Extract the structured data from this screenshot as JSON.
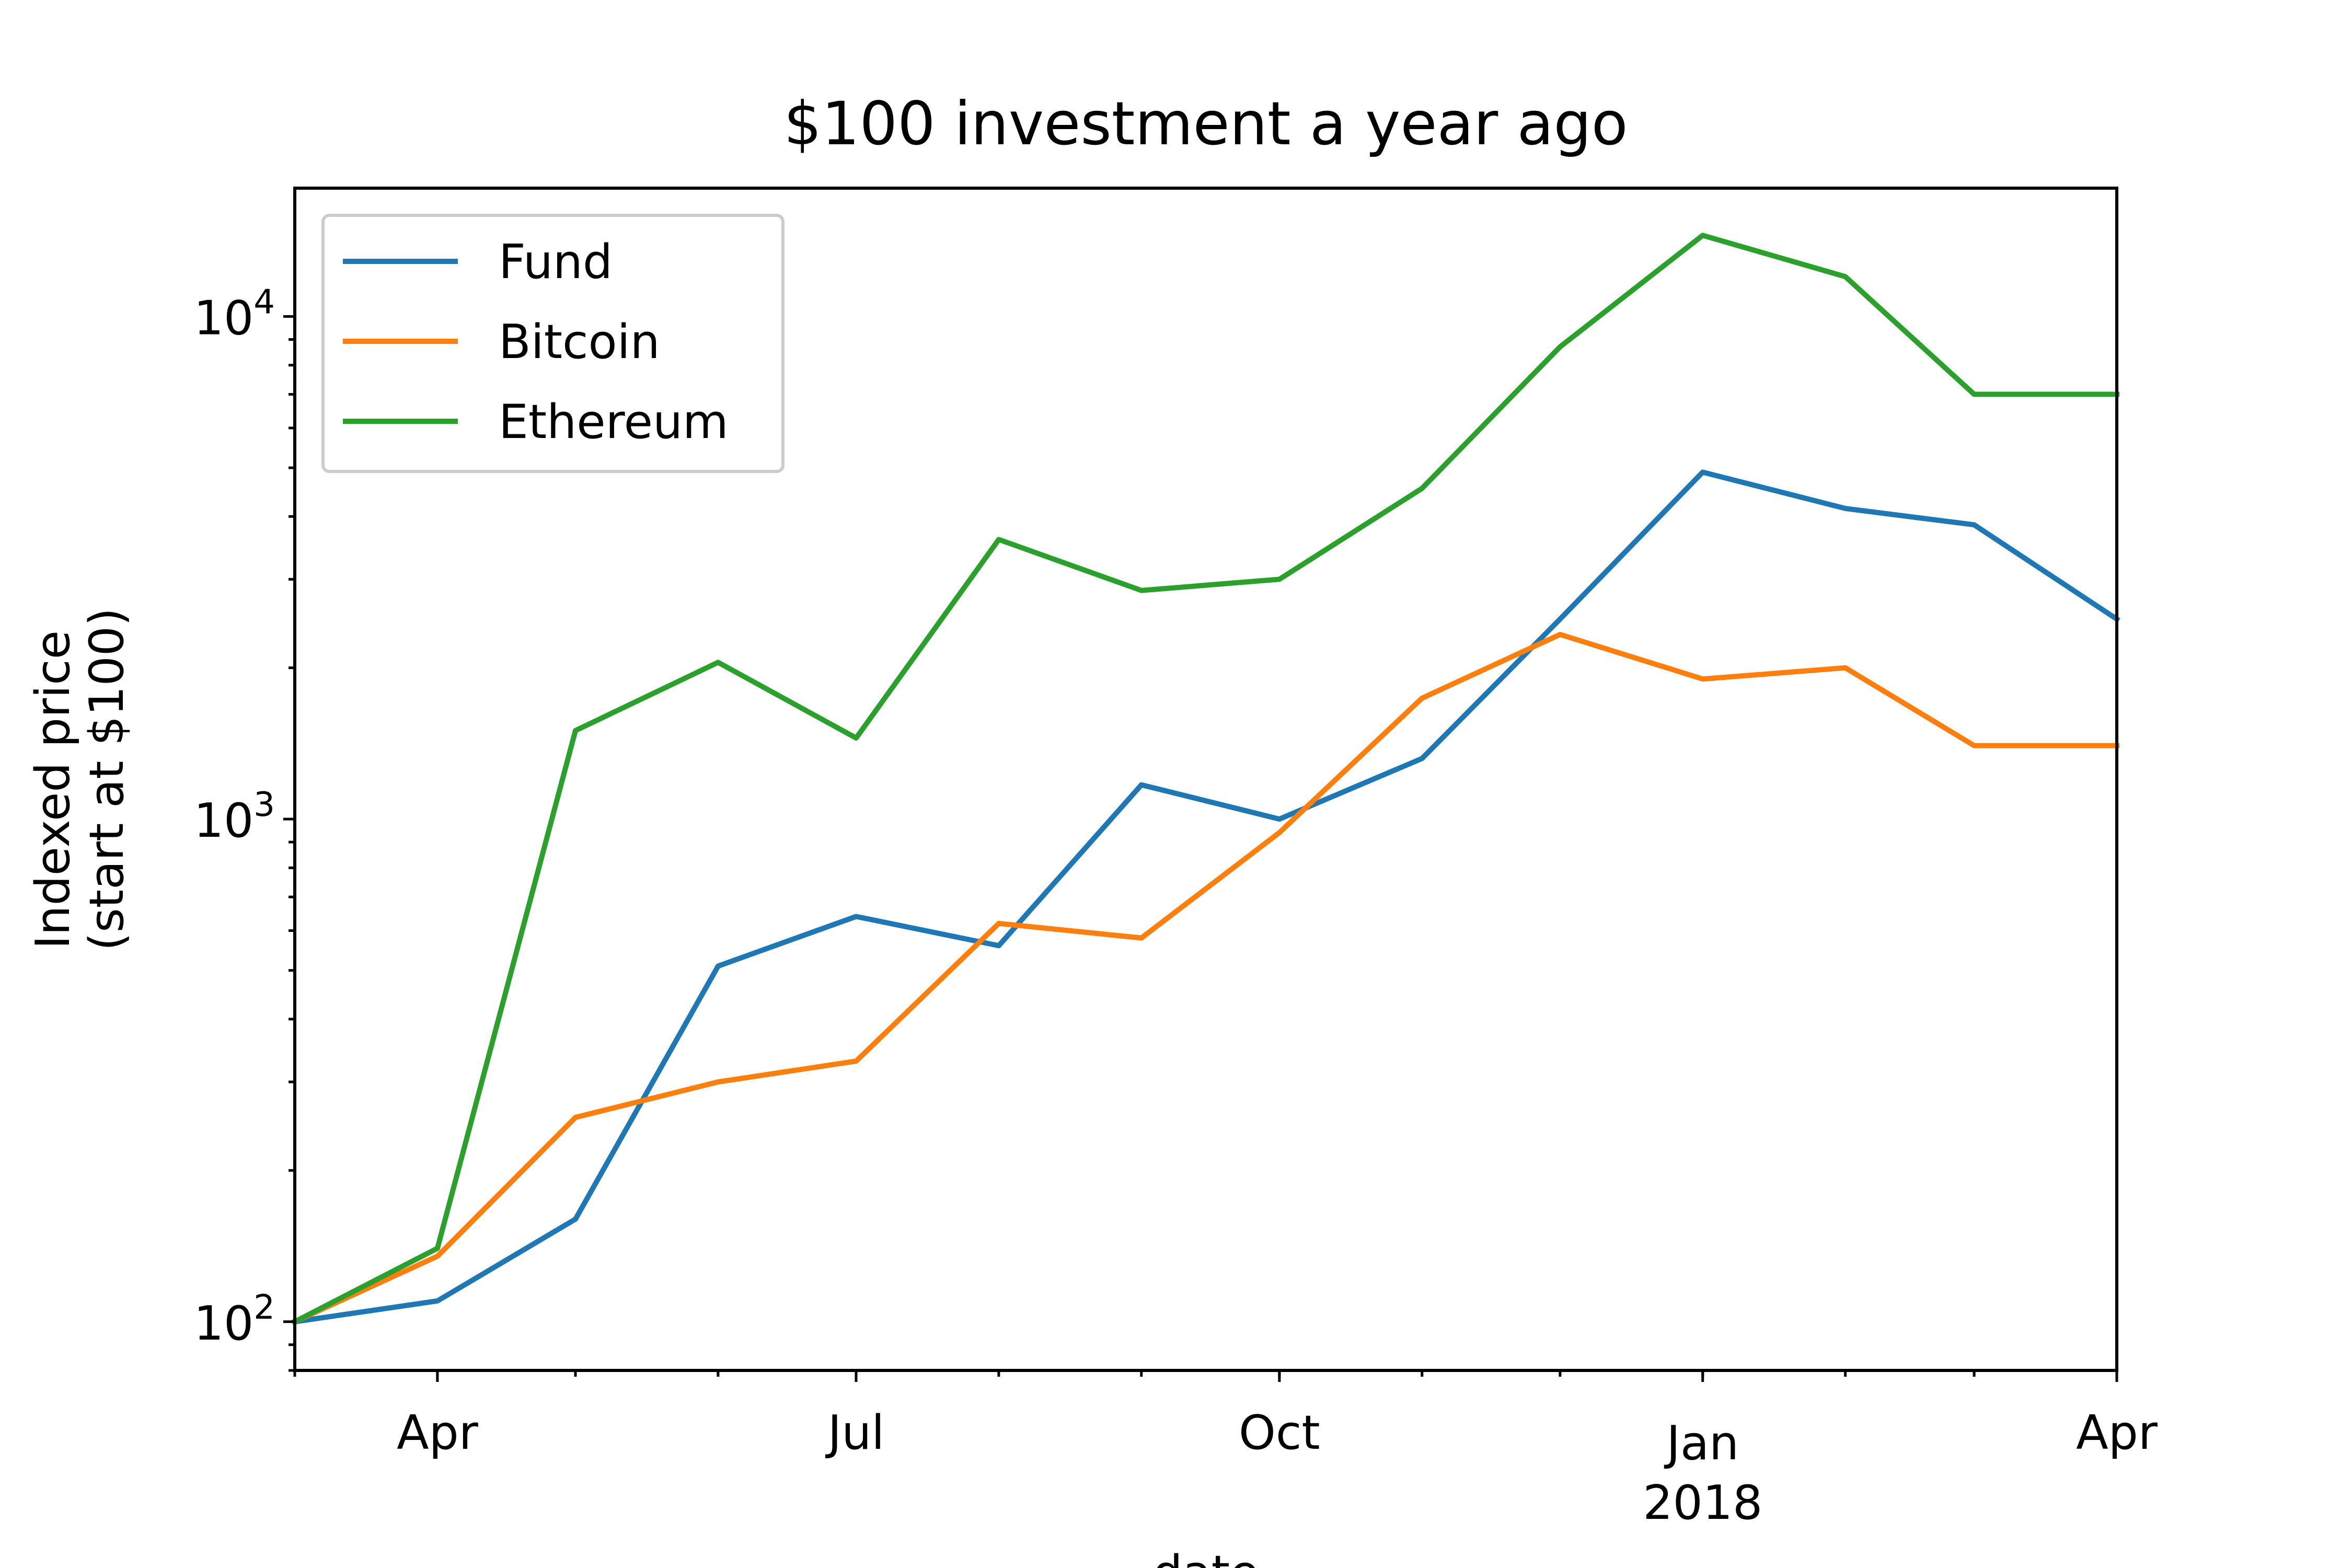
{
  "chart_data": {
    "type": "line",
    "title": "$100 investment a year ago",
    "xlabel": "date",
    "ylabel_line1": "Indexed price",
    "ylabel_line2": "(start at $100)",
    "y_scale": "log",
    "ylim": [
      80,
      18000
    ],
    "x": [
      "2017-03-01",
      "2017-04-01",
      "2017-05-01",
      "2017-06-01",
      "2017-07-01",
      "2017-08-01",
      "2017-09-01",
      "2017-10-01",
      "2017-11-01",
      "2017-12-01",
      "2018-01-01",
      "2018-02-01",
      "2018-03-01",
      "2018-04-01"
    ],
    "xlim": [
      "2017-03-01",
      "2018-04-01"
    ],
    "series": [
      {
        "name": "Fund",
        "color": "#1f77b4",
        "values": [
          100,
          110,
          160,
          510,
          640,
          560,
          1170,
          1000,
          1320,
          2500,
          4900,
          4150,
          3850,
          2500
        ]
      },
      {
        "name": "Bitcoin",
        "color": "#ff7f0e",
        "values": [
          100,
          135,
          255,
          300,
          330,
          620,
          580,
          940,
          1740,
          2330,
          1900,
          2000,
          1400,
          1400
        ]
      },
      {
        "name": "Ethereum",
        "color": "#2ca02c",
        "values": [
          100,
          140,
          1500,
          2050,
          1450,
          3600,
          2850,
          3000,
          4550,
          8700,
          14500,
          12000,
          7000,
          7000
        ]
      }
    ],
    "y_ticks": [
      {
        "value": 100,
        "base": "10",
        "exp": "2"
      },
      {
        "value": 1000,
        "base": "10",
        "exp": "3"
      },
      {
        "value": 10000,
        "base": "10",
        "exp": "4"
      }
    ],
    "x_ticks": [
      {
        "date": "2017-04-01",
        "label": "Apr",
        "label2": ""
      },
      {
        "date": "2017-07-01",
        "label": "Jul",
        "label2": ""
      },
      {
        "date": "2017-10-01",
        "label": "Oct",
        "label2": ""
      },
      {
        "date": "2018-01-01",
        "label": "Jan",
        "label2": "2018"
      },
      {
        "date": "2018-04-01",
        "label": "Apr",
        "label2": ""
      }
    ],
    "grid": false,
    "legend_position": "upper-left"
  }
}
